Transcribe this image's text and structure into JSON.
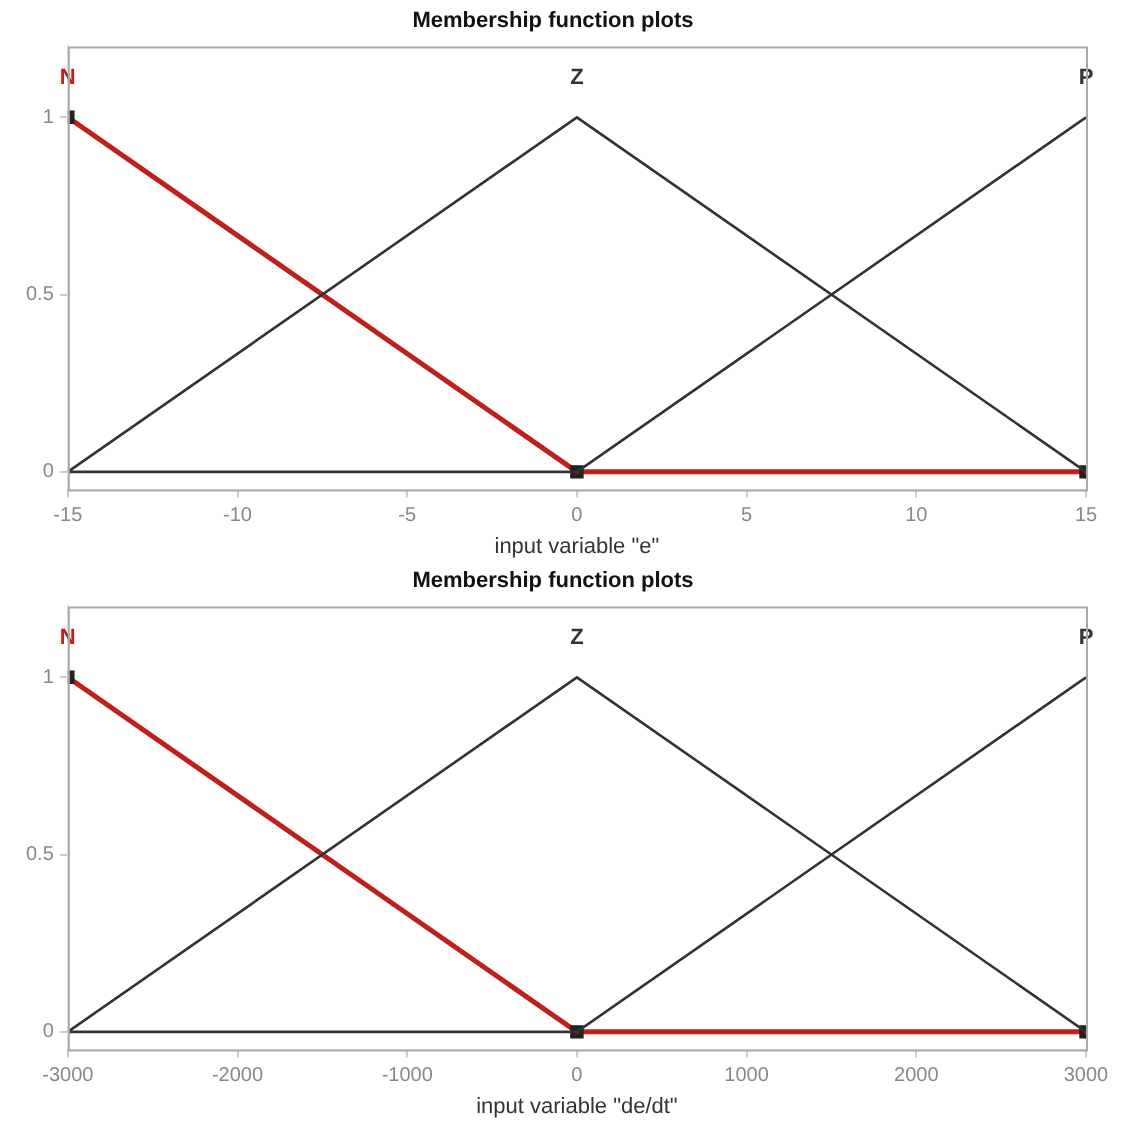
{
  "chart_data": [
    {
      "type": "line",
      "title": "Membership function plots",
      "xlabel": "input variable \"e\"",
      "x": [
        -15,
        0,
        15
      ],
      "series": [
        {
          "name": "N",
          "color": "#c0201c",
          "values": [
            1,
            0,
            0
          ],
          "marker": "square"
        },
        {
          "name": "Z",
          "color": "#333333",
          "values": [
            0,
            1,
            0
          ]
        },
        {
          "name": "P",
          "color": "#333333",
          "values": [
            0,
            0,
            1
          ]
        }
      ],
      "xlim": [
        -15,
        15
      ],
      "xticks": [
        -15,
        -10,
        -5,
        0,
        5,
        10,
        15
      ],
      "ylim": [
        -0.05,
        1.2
      ],
      "yticks": [
        0,
        0.5,
        1
      ],
      "grid": false,
      "legend": false
    },
    {
      "type": "line",
      "title": "Membership function plots",
      "xlabel": "input variable \"de/dt\"",
      "x": [
        -3000,
        0,
        3000
      ],
      "series": [
        {
          "name": "N",
          "color": "#c0201c",
          "values": [
            1,
            0,
            0
          ],
          "marker": "square"
        },
        {
          "name": "Z",
          "color": "#333333",
          "values": [
            0,
            1,
            0
          ]
        },
        {
          "name": "P",
          "color": "#333333",
          "values": [
            0,
            0,
            1
          ]
        }
      ],
      "xlim": [
        -3000,
        3000
      ],
      "xticks": [
        -3000,
        -2000,
        -1000,
        0,
        1000,
        2000,
        3000
      ],
      "ylim": [
        -0.05,
        1.2
      ],
      "yticks": [
        0,
        0.5,
        1
      ],
      "grid": false,
      "legend": false
    }
  ]
}
